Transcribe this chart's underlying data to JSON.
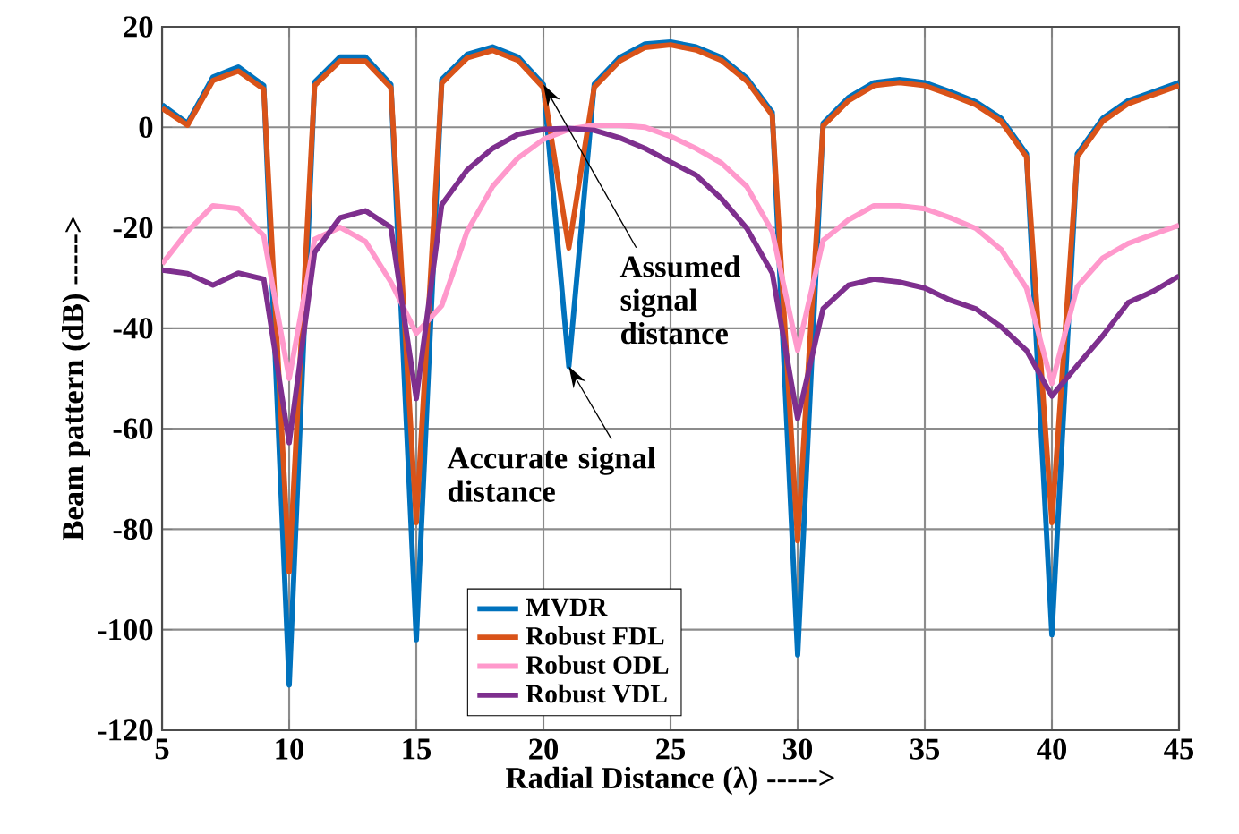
{
  "chart_data": {
    "type": "line",
    "xlabel": "Radial Distance (λ) ----->",
    "ylabel": "Beam pattern (dB) ----->",
    "x": [
      5,
      6,
      7,
      8,
      9,
      10,
      11,
      12,
      13,
      14,
      15,
      16,
      17,
      18,
      19,
      20,
      21,
      22,
      23,
      24,
      25,
      26,
      27,
      28,
      29,
      30,
      31,
      32,
      33,
      34,
      35,
      36,
      37,
      38,
      39,
      40,
      41,
      42,
      43,
      44,
      45
    ],
    "series": [
      {
        "name": "MVDR",
        "color": "#0072bd",
        "values": [
          4.5,
          0.8,
          10,
          12,
          8.3,
          -111,
          9,
          14,
          14,
          8.5,
          -102,
          9.5,
          14.5,
          16,
          14,
          8.5,
          -47.6,
          8.6,
          13.9,
          16.6,
          17,
          16,
          13.9,
          9.8,
          3,
          -105,
          0.8,
          5.9,
          8.9,
          9.5,
          8.9,
          7.1,
          5.1,
          1.8,
          -5.3,
          -101,
          -5.3,
          1.8,
          5.3,
          7.1,
          8.9
        ]
      },
      {
        "name": "Robust FDL",
        "color": "#d95319",
        "values": [
          3.8,
          0.4,
          9.3,
          11.2,
          7.6,
          -88.5,
          8.3,
          13.2,
          13.2,
          7.9,
          -78.7,
          8.8,
          13.8,
          15.3,
          13.3,
          7.9,
          -24,
          8,
          13.2,
          15.9,
          16.4,
          15.4,
          13.3,
          9.2,
          2.4,
          -82.3,
          0.3,
          5.3,
          8.3,
          8.9,
          8.3,
          6.5,
          4.5,
          1.2,
          -5.9,
          -78.7,
          -5.9,
          1.2,
          4.7,
          6.5,
          8.3
        ]
      },
      {
        "name": "Robust ODL",
        "color": "#ff99cc",
        "values": [
          -27.2,
          -20.7,
          -15.6,
          -16.2,
          -21.6,
          -50,
          -22.3,
          -19.9,
          -22.7,
          -30.8,
          -41,
          -35.5,
          -20.7,
          -11.8,
          -6.1,
          -2.4,
          -0.4,
          0.4,
          0.4,
          0,
          -1.8,
          -4.2,
          -7.1,
          -11.8,
          -20.7,
          -44.4,
          -22.5,
          -18.4,
          -15.6,
          -15.6,
          -16.2,
          -18,
          -20.1,
          -24.3,
          -32,
          -51,
          -31.7,
          -26,
          -23.1,
          -21.3,
          -19.5
        ]
      },
      {
        "name": "Robust VDL",
        "color": "#7e2f8e",
        "values": [
          -28.4,
          -29.1,
          -31.4,
          -29,
          -30.2,
          -62.8,
          -24.9,
          -18,
          -16.6,
          -19.9,
          -54,
          -15.4,
          -8.5,
          -4.2,
          -1.4,
          -0.4,
          -0.2,
          -0.6,
          -2.1,
          -4.2,
          -6.9,
          -9.5,
          -14.2,
          -20.1,
          -29,
          -58,
          -36.1,
          -31.4,
          -30.2,
          -30.8,
          -32,
          -34.4,
          -36.1,
          -39.7,
          -44.4,
          -53.5,
          -47.4,
          -41.5,
          -34.9,
          -32.6,
          -29.6
        ]
      }
    ],
    "xlim": [
      5,
      45
    ],
    "xticks": [
      5,
      10,
      15,
      20,
      25,
      30,
      35,
      40,
      45
    ],
    "ylim": [
      -120,
      20
    ],
    "yticks": [
      -120,
      -100,
      -80,
      -60,
      -40,
      -20,
      0,
      20
    ],
    "grid": true,
    "legend": "bottom",
    "marker": "none",
    "line_style": "solid",
    "annotations": [
      {
        "text": "Assumed signal distance",
        "x": 20,
        "y": 8.5
      },
      {
        "text": "Accurate signal distance",
        "x": 21,
        "y": -47.6
      }
    ]
  }
}
